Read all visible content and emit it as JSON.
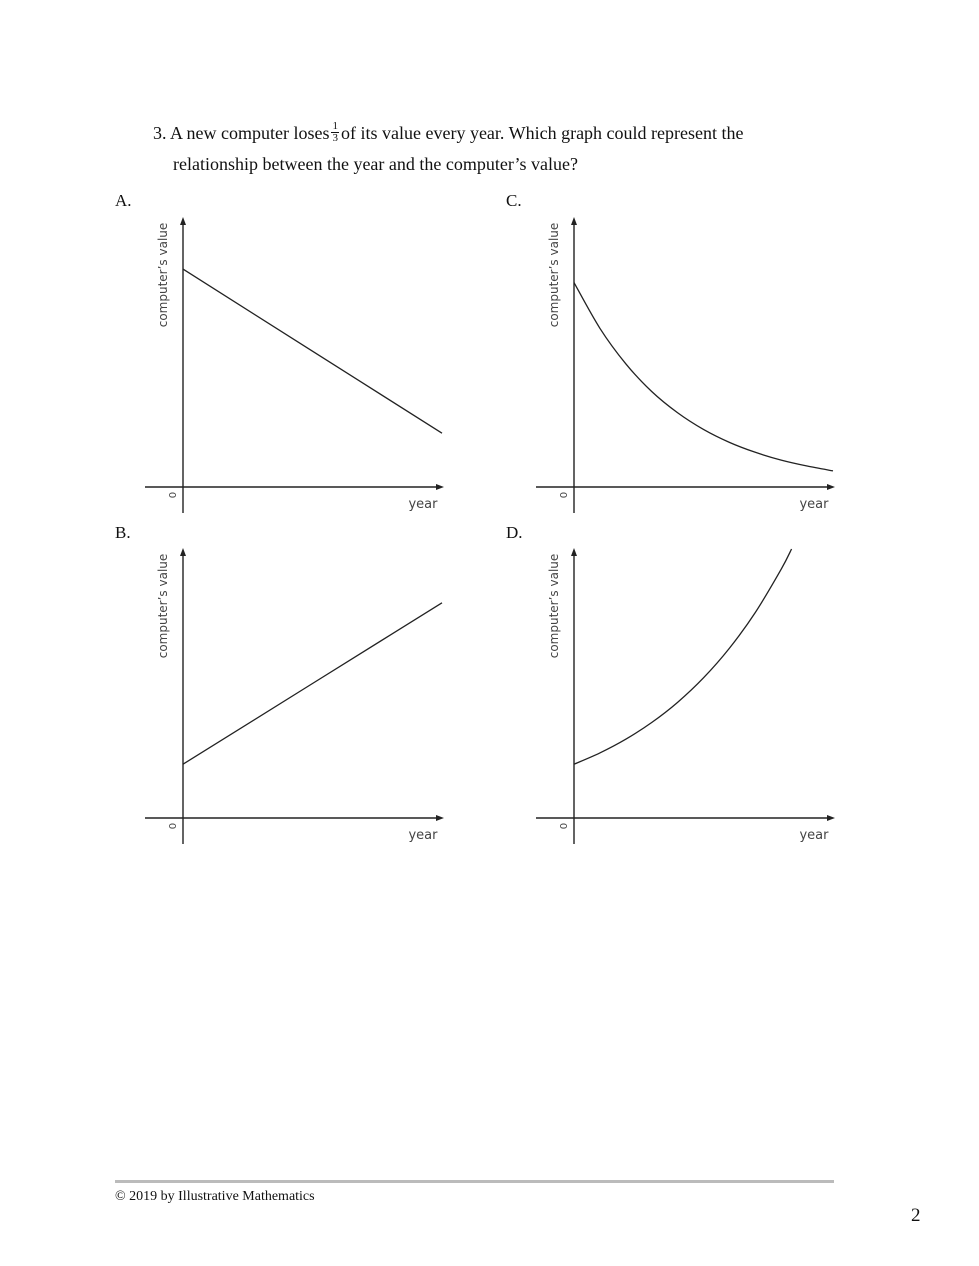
{
  "question": {
    "number": "3.",
    "text_before": "A new computer loses",
    "fraction_numerator": "1",
    "fraction_denominator": "3",
    "text_after": "of its value every year. Which graph could represent the",
    "line2": "relationship between the year and the computer’s value?"
  },
  "chart_data": [
    {
      "option": "A.",
      "type": "line",
      "xlabel": "year",
      "ylabel": "computer’s value",
      "origin_label": "0",
      "xlim": [
        0,
        10
      ],
      "ylim": [
        0,
        10
      ],
      "x": [
        0,
        10
      ],
      "y": [
        8.1,
        2.0
      ]
    },
    {
      "option": "B.",
      "type": "line",
      "xlabel": "year",
      "ylabel": "computer’s value",
      "origin_label": "0",
      "xlim": [
        0,
        10
      ],
      "ylim": [
        0,
        10
      ],
      "x": [
        0,
        10
      ],
      "y": [
        2.0,
        8.0
      ]
    },
    {
      "option": "C.",
      "type": "line",
      "xlabel": "year",
      "ylabel": "computer’s value",
      "origin_label": "0",
      "xlim": [
        0,
        10
      ],
      "ylim": [
        0,
        10
      ],
      "x": [
        0,
        1,
        2,
        3,
        4,
        5,
        6,
        7,
        8,
        9,
        10
      ],
      "y": [
        7.6,
        5.9,
        4.58,
        3.55,
        2.76,
        2.14,
        1.66,
        1.29,
        1.0,
        0.78,
        0.6
      ]
    },
    {
      "option": "D.",
      "type": "line",
      "xlabel": "year",
      "ylabel": "computer’s value",
      "origin_label": "0",
      "xlim": [
        0,
        10
      ],
      "ylim": [
        0,
        10
      ],
      "x": [
        0,
        1,
        2,
        3,
        4,
        5,
        6,
        7,
        8,
        8.4
      ],
      "y": [
        2.0,
        2.42,
        2.93,
        3.55,
        4.3,
        5.21,
        6.31,
        7.64,
        9.25,
        10.0
      ]
    }
  ],
  "footer": {
    "copyright": "© 2019 by Illustrative Mathematics",
    "page_number": "2"
  }
}
